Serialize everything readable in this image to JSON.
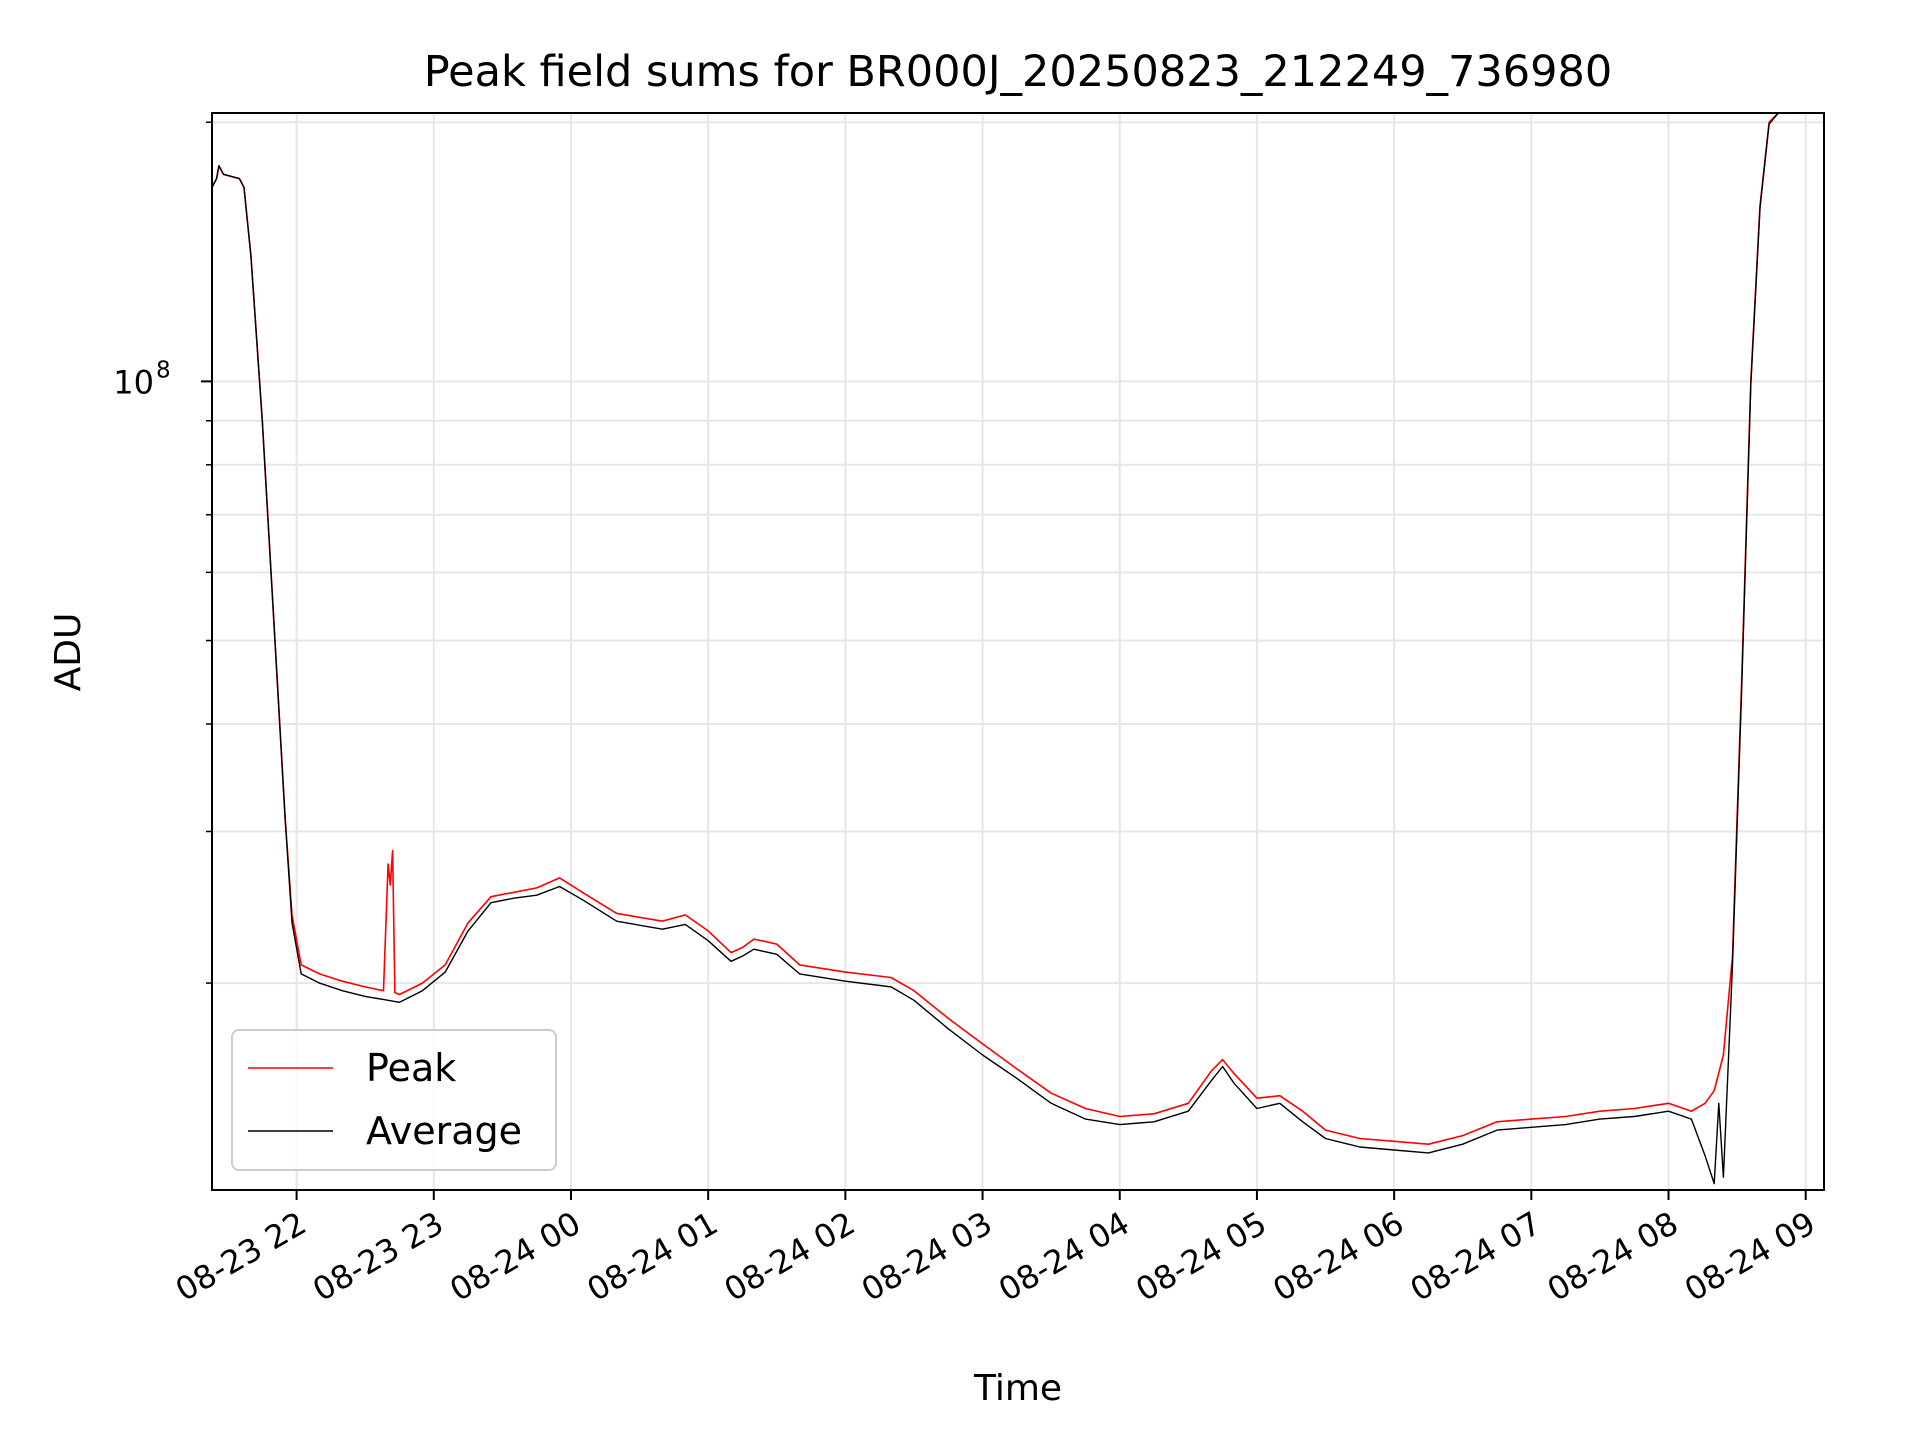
{
  "chart_data": {
    "type": "line",
    "title": "Peak field sums for BR000J_20250823_212249_736980",
    "xlabel": "Time",
    "ylabel": "ADU",
    "yscale": "log",
    "grid": true,
    "legend_position": "lower-left",
    "x_tick_labels": [
      "08-23 22",
      "08-23 23",
      "08-24 00",
      "08-24 01",
      "08-24 02",
      "08-24 03",
      "08-24 04",
      "08-24 05",
      "08-24 06",
      "08-24 07",
      "08-24 08",
      "08-24 09"
    ],
    "y_tick_labels": [
      {
        "base": "10",
        "exp": "8"
      }
    ],
    "xlim": [
      "2025-08-23 21:23",
      "2025-08-24 09:08"
    ],
    "ylim": [
      11500000,
      205000000
    ],
    "series": [
      {
        "name": "Peak",
        "color": "#ff0000",
        "points": [
          [
            "2025-08-23 21:23",
            168000000
          ],
          [
            "2025-08-23 21:25",
            172000000
          ],
          [
            "2025-08-23 21:26",
            178000000
          ],
          [
            "2025-08-23 21:28",
            174000000
          ],
          [
            "2025-08-23 21:35",
            172000000
          ],
          [
            "2025-08-23 21:37",
            168000000
          ],
          [
            "2025-08-23 21:40",
            140000000
          ],
          [
            "2025-08-23 21:45",
            90000000
          ],
          [
            "2025-08-23 21:50",
            53000000
          ],
          [
            "2025-08-23 21:55",
            31000000
          ],
          [
            "2025-08-23 21:58",
            24000000
          ],
          [
            "2025-08-23 22:02",
            21000000
          ],
          [
            "2025-08-23 22:10",
            20500000
          ],
          [
            "2025-08-23 22:20",
            20100000
          ],
          [
            "2025-08-23 22:30",
            19800000
          ],
          [
            "2025-08-23 22:38",
            19600000
          ],
          [
            "2025-08-23 22:40",
            27500000
          ],
          [
            "2025-08-23 22:41",
            26000000
          ],
          [
            "2025-08-23 22:42",
            28500000
          ],
          [
            "2025-08-23 22:43",
            19500000
          ],
          [
            "2025-08-23 22:45",
            19400000
          ],
          [
            "2025-08-23 22:55",
            20000000
          ],
          [
            "2025-08-23 23:05",
            21000000
          ],
          [
            "2025-08-23 23:15",
            23500000
          ],
          [
            "2025-08-23 23:25",
            25200000
          ],
          [
            "2025-08-23 23:35",
            25500000
          ],
          [
            "2025-08-23 23:45",
            25800000
          ],
          [
            "2025-08-23 23:55",
            26500000
          ],
          [
            "2025-08-24 00:05",
            25500000
          ],
          [
            "2025-08-24 00:20",
            24100000
          ],
          [
            "2025-08-24 00:40",
            23600000
          ],
          [
            "2025-08-24 00:50",
            24000000
          ],
          [
            "2025-08-24 01:00",
            23000000
          ],
          [
            "2025-08-24 01:10",
            21700000
          ],
          [
            "2025-08-24 01:15",
            22000000
          ],
          [
            "2025-08-24 01:20",
            22500000
          ],
          [
            "2025-08-24 01:30",
            22200000
          ],
          [
            "2025-08-24 01:40",
            21000000
          ],
          [
            "2025-08-24 02:00",
            20600000
          ],
          [
            "2025-08-24 02:20",
            20300000
          ],
          [
            "2025-08-24 02:30",
            19600000
          ],
          [
            "2025-08-24 02:45",
            18200000
          ],
          [
            "2025-08-24 03:00",
            17000000
          ],
          [
            "2025-08-24 03:15",
            15900000
          ],
          [
            "2025-08-24 03:30",
            14900000
          ],
          [
            "2025-08-24 03:45",
            14300000
          ],
          [
            "2025-08-24 04:00",
            14000000
          ],
          [
            "2025-08-24 04:15",
            14100000
          ],
          [
            "2025-08-24 04:30",
            14500000
          ],
          [
            "2025-08-24 04:40",
            15800000
          ],
          [
            "2025-08-24 04:45",
            16300000
          ],
          [
            "2025-08-24 04:50",
            15700000
          ],
          [
            "2025-08-24 05:00",
            14700000
          ],
          [
            "2025-08-24 05:10",
            14800000
          ],
          [
            "2025-08-24 05:20",
            14200000
          ],
          [
            "2025-08-24 05:30",
            13500000
          ],
          [
            "2025-08-24 05:45",
            13200000
          ],
          [
            "2025-08-24 06:00",
            13100000
          ],
          [
            "2025-08-24 06:15",
            13000000
          ],
          [
            "2025-08-24 06:30",
            13300000
          ],
          [
            "2025-08-24 06:45",
            13800000
          ],
          [
            "2025-08-24 07:00",
            13900000
          ],
          [
            "2025-08-24 07:15",
            14000000
          ],
          [
            "2025-08-24 07:30",
            14200000
          ],
          [
            "2025-08-24 07:45",
            14300000
          ],
          [
            "2025-08-24 08:00",
            14500000
          ],
          [
            "2025-08-24 08:10",
            14200000
          ],
          [
            "2025-08-24 08:16",
            14500000
          ],
          [
            "2025-08-24 08:20",
            15000000
          ],
          [
            "2025-08-24 08:24",
            16500000
          ],
          [
            "2025-08-24 08:28",
            21500000
          ],
          [
            "2025-08-24 08:32",
            45000000
          ],
          [
            "2025-08-24 08:36",
            100000000
          ],
          [
            "2025-08-24 08:40",
            160000000
          ],
          [
            "2025-08-24 08:44",
            200000000
          ],
          [
            "2025-08-24 08:48",
            205000000
          ]
        ]
      },
      {
        "name": "Average",
        "color": "#000000",
        "points": [
          [
            "2025-08-23 21:23",
            168000000
          ],
          [
            "2025-08-23 21:25",
            172000000
          ],
          [
            "2025-08-23 21:26",
            178000000
          ],
          [
            "2025-08-23 21:28",
            174000000
          ],
          [
            "2025-08-23 21:35",
            172000000
          ],
          [
            "2025-08-23 21:37",
            168000000
          ],
          [
            "2025-08-23 21:40",
            140000000
          ],
          [
            "2025-08-23 21:45",
            90000000
          ],
          [
            "2025-08-23 21:50",
            53000000
          ],
          [
            "2025-08-23 21:55",
            31000000
          ],
          [
            "2025-08-23 21:58",
            23500000
          ],
          [
            "2025-08-23 22:02",
            20500000
          ],
          [
            "2025-08-23 22:10",
            20000000
          ],
          [
            "2025-08-23 22:20",
            19600000
          ],
          [
            "2025-08-23 22:30",
            19300000
          ],
          [
            "2025-08-23 22:40",
            19100000
          ],
          [
            "2025-08-23 22:45",
            19000000
          ],
          [
            "2025-08-23 22:55",
            19600000
          ],
          [
            "2025-08-23 23:05",
            20600000
          ],
          [
            "2025-08-23 23:15",
            23000000
          ],
          [
            "2025-08-23 23:25",
            24800000
          ],
          [
            "2025-08-23 23:35",
            25100000
          ],
          [
            "2025-08-23 23:45",
            25300000
          ],
          [
            "2025-08-23 23:55",
            25900000
          ],
          [
            "2025-08-24 00:05",
            25000000
          ],
          [
            "2025-08-24 00:20",
            23600000
          ],
          [
            "2025-08-24 00:40",
            23100000
          ],
          [
            "2025-08-24 00:50",
            23400000
          ],
          [
            "2025-08-24 01:00",
            22400000
          ],
          [
            "2025-08-24 01:10",
            21200000
          ],
          [
            "2025-08-24 01:15",
            21500000
          ],
          [
            "2025-08-24 01:20",
            21900000
          ],
          [
            "2025-08-24 01:30",
            21600000
          ],
          [
            "2025-08-24 01:40",
            20500000
          ],
          [
            "2025-08-24 02:00",
            20100000
          ],
          [
            "2025-08-24 02:20",
            19800000
          ],
          [
            "2025-08-24 02:30",
            19100000
          ],
          [
            "2025-08-24 02:45",
            17700000
          ],
          [
            "2025-08-24 03:00",
            16500000
          ],
          [
            "2025-08-24 03:15",
            15500000
          ],
          [
            "2025-08-24 03:30",
            14500000
          ],
          [
            "2025-08-24 03:45",
            13900000
          ],
          [
            "2025-08-24 04:00",
            13700000
          ],
          [
            "2025-08-24 04:15",
            13800000
          ],
          [
            "2025-08-24 04:30",
            14200000
          ],
          [
            "2025-08-24 04:40",
            15400000
          ],
          [
            "2025-08-24 04:45",
            16000000
          ],
          [
            "2025-08-24 04:50",
            15300000
          ],
          [
            "2025-08-24 05:00",
            14300000
          ],
          [
            "2025-08-24 05:10",
            14500000
          ],
          [
            "2025-08-24 05:20",
            13800000
          ],
          [
            "2025-08-24 05:30",
            13200000
          ],
          [
            "2025-08-24 05:45",
            12900000
          ],
          [
            "2025-08-24 06:00",
            12800000
          ],
          [
            "2025-08-24 06:15",
            12700000
          ],
          [
            "2025-08-24 06:30",
            13000000
          ],
          [
            "2025-08-24 06:45",
            13500000
          ],
          [
            "2025-08-24 07:00",
            13600000
          ],
          [
            "2025-08-24 07:15",
            13700000
          ],
          [
            "2025-08-24 07:30",
            13900000
          ],
          [
            "2025-08-24 07:45",
            14000000
          ],
          [
            "2025-08-24 08:00",
            14200000
          ],
          [
            "2025-08-24 08:10",
            13900000
          ],
          [
            "2025-08-24 08:16",
            12600000
          ],
          [
            "2025-08-24 08:20",
            11700000
          ],
          [
            "2025-08-24 08:22",
            14500000
          ],
          [
            "2025-08-24 08:24",
            11900000
          ],
          [
            "2025-08-24 08:28",
            21000000
          ],
          [
            "2025-08-24 08:32",
            44000000
          ],
          [
            "2025-08-24 08:36",
            99000000
          ],
          [
            "2025-08-24 08:40",
            159000000
          ],
          [
            "2025-08-24 08:44",
            199000000
          ],
          [
            "2025-08-24 08:48",
            205000000
          ]
        ]
      }
    ]
  }
}
